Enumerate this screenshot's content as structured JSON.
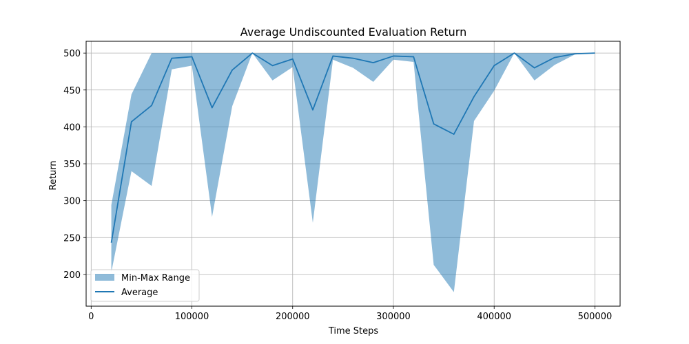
{
  "chart_data": {
    "type": "line",
    "title": "Average Undiscounted Evaluation Return",
    "xlabel": "Time Steps",
    "ylabel": "Return",
    "xlim": [
      -5000,
      525000
    ],
    "ylim": [
      157,
      516
    ],
    "xticks": [
      0,
      100000,
      200000,
      300000,
      400000,
      500000
    ],
    "yticks": [
      200,
      250,
      300,
      350,
      400,
      450,
      500
    ],
    "grid": true,
    "legend_position": "lower-left",
    "colors": {
      "line": "#1f77b4",
      "fill": "#1f77b4",
      "grid": "#b0b0b0"
    },
    "x": [
      20000,
      40000,
      60000,
      80000,
      100000,
      120000,
      140000,
      160000,
      180000,
      200000,
      220000,
      240000,
      260000,
      280000,
      300000,
      320000,
      340000,
      360000,
      380000,
      400000,
      420000,
      440000,
      460000,
      480000,
      500000
    ],
    "series": [
      {
        "name": "Average",
        "kind": "line",
        "values": [
          243,
          407,
          429,
          493,
          495,
          426,
          477,
          500,
          483,
          492,
          423,
          496,
          493,
          487,
          496,
          495,
          404,
          390,
          441,
          483,
          500,
          480,
          494,
          499,
          500
        ]
      },
      {
        "name": "Min-Max Range",
        "kind": "band",
        "min": [
          203,
          340,
          320,
          478,
          483,
          278,
          428,
          500,
          463,
          481,
          270,
          491,
          480,
          461,
          491,
          488,
          213,
          176,
          408,
          449,
          500,
          463,
          484,
          498,
          500
        ],
        "max": [
          294,
          444,
          500,
          500,
          500,
          500,
          500,
          500,
          500,
          500,
          500,
          500,
          500,
          500,
          500,
          500,
          500,
          500,
          500,
          500,
          500,
          500,
          500,
          500,
          500
        ]
      }
    ]
  }
}
